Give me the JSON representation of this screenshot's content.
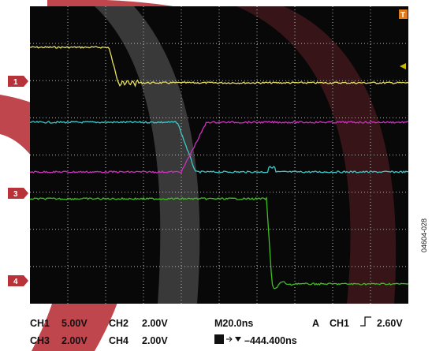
{
  "markers": {
    "ch1": "1",
    "ch3": "3",
    "ch4": "4",
    "trigger": "T"
  },
  "status": {
    "ch1": {
      "label": "CH1",
      "scale": "5.00V"
    },
    "ch2": {
      "label": "CH2",
      "scale": "2.00V"
    },
    "ch3": {
      "label": "CH3",
      "scale": "2.00V"
    },
    "ch4": {
      "label": "CH4",
      "scale": "2.00V"
    },
    "timebase": "M20.0ns",
    "trigger": {
      "mode": "A",
      "source": "CH1",
      "level": "2.60V"
    },
    "position": "–444.400ns"
  },
  "figure_id": "04604-028"
}
